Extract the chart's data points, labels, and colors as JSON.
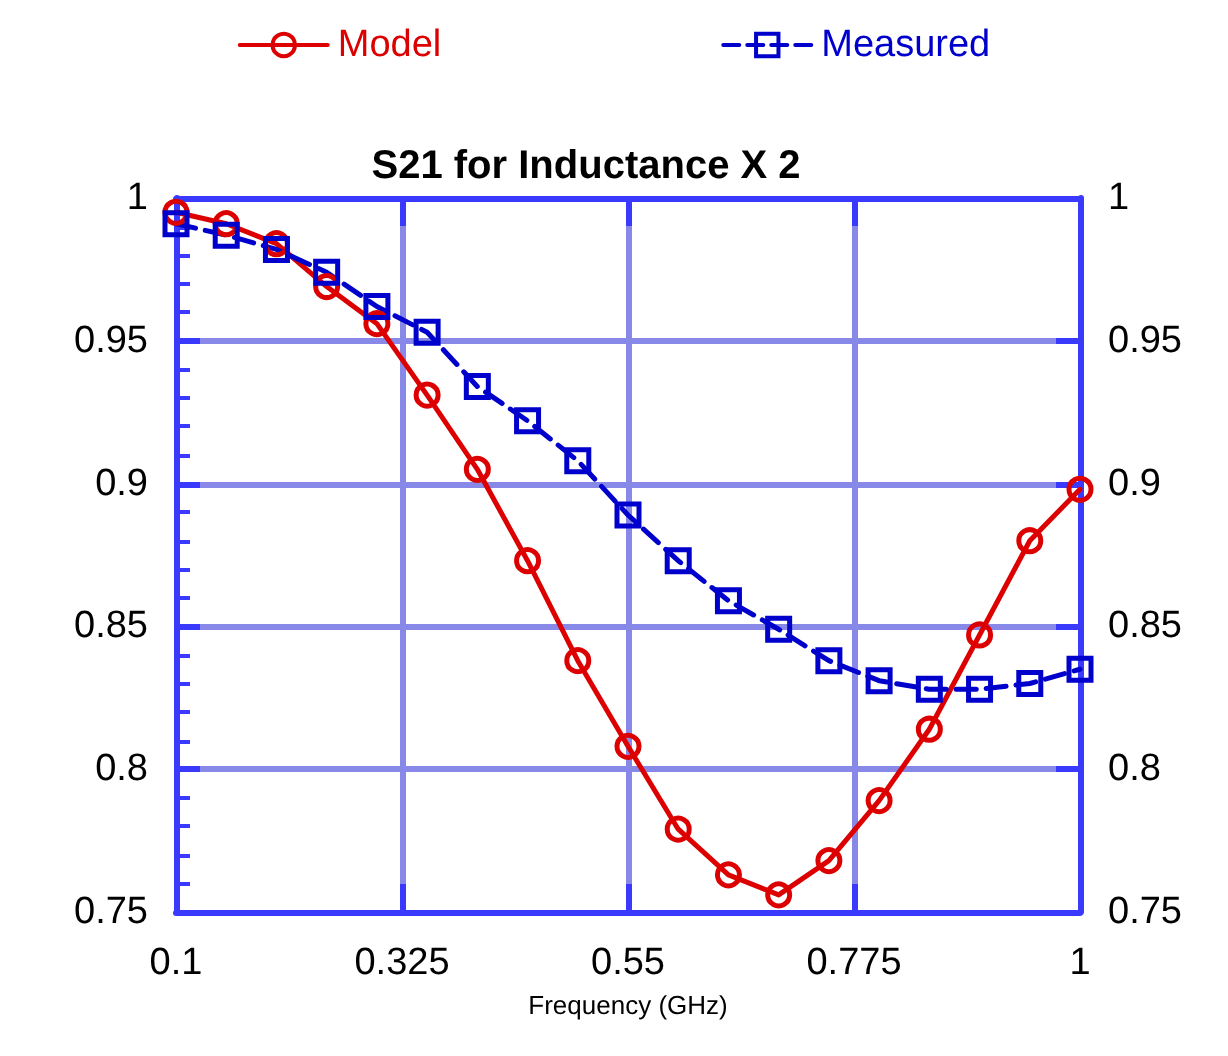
{
  "chart_data": {
    "type": "line",
    "title": "S21 for Inductance X 2",
    "xlabel": "Frequency (GHz)",
    "x": [
      0.1,
      0.15,
      0.2,
      0.25,
      0.3,
      0.35,
      0.4,
      0.45,
      0.5,
      0.55,
      0.6,
      0.65,
      0.7,
      0.75,
      0.8,
      0.85,
      0.9,
      0.95,
      1.0
    ],
    "series": [
      {
        "name": "Model",
        "color": "#dd0000",
        "marker": "circle",
        "line_style": "solid",
        "values": [
          0.995,
          0.991,
          0.984,
          0.969,
          0.956,
          0.931,
          0.905,
          0.873,
          0.838,
          0.808,
          0.779,
          0.763,
          0.756,
          0.768,
          0.789,
          0.814,
          0.847,
          0.88,
          0.898
        ]
      },
      {
        "name": "Measured",
        "color": "#0000cc",
        "marker": "square",
        "line_style": "dashed",
        "values": [
          0.991,
          0.987,
          0.982,
          0.974,
          0.962,
          0.953,
          0.934,
          0.922,
          0.908,
          0.889,
          0.873,
          0.859,
          0.849,
          0.838,
          0.831,
          0.828,
          0.828,
          0.83,
          0.835
        ]
      }
    ],
    "xlim": [
      0.1,
      1
    ],
    "xticks": [
      0.1,
      0.325,
      0.55,
      0.775,
      1
    ],
    "ylim": [
      0.75,
      1
    ],
    "yticks": [
      0.75,
      0.8,
      0.85,
      0.9,
      0.95,
      1
    ],
    "y2lim": [
      0.75,
      1
    ],
    "y2ticks": [
      0.75,
      0.8,
      0.85,
      0.9,
      0.95,
      1
    ],
    "grid": true,
    "legend": "top"
  }
}
